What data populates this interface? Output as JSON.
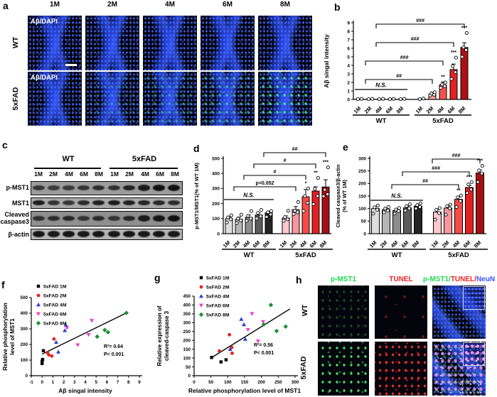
{
  "panels": {
    "a": "a",
    "b": "b",
    "c": "c",
    "d": "d",
    "e": "e",
    "f": "f",
    "g": "g",
    "h": "h"
  },
  "panel_a": {
    "col_headers": [
      "1M",
      "2M",
      "4M",
      "6M",
      "8M"
    ],
    "row_labels": [
      "WT",
      "5xFAD"
    ],
    "image_label": "Aβ/DAPI"
  },
  "panel_c": {
    "group_headers": [
      "WT",
      "5xFAD"
    ],
    "lane_labels": [
      "1M",
      "2M",
      "4M",
      "6M",
      "8M",
      "1M",
      "2M",
      "4M",
      "6M",
      "8M"
    ],
    "row_labels": [
      "p-MST1",
      "MST1",
      "Cleaved caspase3",
      "β-actin"
    ],
    "bands": {
      "p_mst1": [
        0.5,
        0.45,
        0.45,
        0.55,
        0.62,
        0.6,
        0.78,
        0.88,
        0.97,
        1.0
      ],
      "mst1": [
        0.85,
        0.6,
        0.55,
        0.7,
        0.82,
        0.88,
        0.8,
        0.78,
        0.72,
        0.68
      ],
      "cleaved_caspase3": [
        0.55,
        0.62,
        0.68,
        0.5,
        0.62,
        0.5,
        0.7,
        0.85,
        0.92,
        1.0
      ],
      "b_actin": [
        0.95,
        0.9,
        0.92,
        0.9,
        0.93,
        0.9,
        0.92,
        0.9,
        0.93,
        0.9
      ]
    }
  },
  "panel_h": {
    "col_headers": [
      "p-MST1",
      "TUNEL"
    ],
    "merge_parts": [
      "p-MST1/",
      "TUNEL/",
      "NeuN"
    ],
    "colors": {
      "green": "#1ddb4e",
      "red": "#ee2222",
      "blue": "#3a52ff"
    },
    "row_labels": [
      "WT",
      "5xFAD"
    ]
  },
  "chart_data": [
    {
      "id": "b",
      "type": "bar",
      "ylabel": "Aβ singal intensity",
      "ylim": [
        0,
        9
      ],
      "ytick_step": 1,
      "categories": [
        "1M",
        "2M",
        "4M",
        "6M",
        "8M",
        "1M",
        "2M",
        "4M",
        "6M",
        "8M"
      ],
      "group_labels": [
        "WT",
        "5xFAD"
      ],
      "values": [
        0.05,
        0.05,
        0.05,
        0.05,
        0.05,
        0.07,
        0.6,
        1.7,
        3.5,
        6.1
      ],
      "errors": [
        0.02,
        0.02,
        0.02,
        0.02,
        0.02,
        0.03,
        0.15,
        0.35,
        0.65,
        0.55
      ],
      "dots": [
        [
          0.03,
          0.07
        ],
        [
          0.03,
          0.07
        ],
        [
          0.03,
          0.07
        ],
        [
          0.03,
          0.07
        ],
        [
          0.03,
          0.07
        ],
        [
          0.04,
          0.1
        ],
        [
          0.45,
          0.55,
          0.7,
          0.85
        ],
        [
          1.35,
          1.55,
          1.75,
          2.0
        ],
        [
          2.4,
          3.2,
          3.9,
          4.9
        ],
        [
          5.0,
          5.8,
          6.1,
          7.8
        ]
      ],
      "bar_colors": [
        "#ffffff",
        "#ffffff",
        "#ffffff",
        "#ffffff",
        "#ffffff",
        "#ffd2d2",
        "#fa9f9f",
        "#f5524c",
        "#e02322",
        "#ae1115"
      ],
      "ns": {
        "from": 0,
        "to": 4,
        "label": "N.S."
      },
      "brackets": [
        {
          "from": 2,
          "to": 9,
          "label": "###",
          "row": 0
        },
        {
          "from": 2,
          "to": 8,
          "label": "###",
          "row": 1
        },
        {
          "from": 1,
          "to": 7,
          "label": "###",
          "row": 2
        },
        {
          "from": 1,
          "to": 6,
          "label": "##",
          "row": 3
        }
      ],
      "stars": [
        {
          "cat": 7,
          "text": "**"
        },
        {
          "cat": 8,
          "text": "***"
        },
        {
          "cat": 9,
          "text": "***"
        }
      ]
    },
    {
      "id": "d",
      "type": "bar",
      "ylabel": "p-MST1/MST1(% of WT 1M)",
      "ylim": [
        0,
        500
      ],
      "ytick_step": 100,
      "categories": [
        "1M",
        "2M",
        "4M",
        "6M",
        "8M",
        "1M",
        "2M",
        "4M",
        "6M",
        "8M"
      ],
      "group_labels": [
        "WT",
        "5xFAD"
      ],
      "values": [
        100,
        96,
        108,
        124,
        138,
        104,
        160,
        245,
        283,
        310
      ],
      "errors": [
        12,
        14,
        16,
        14,
        10,
        14,
        20,
        48,
        28,
        48
      ],
      "dots": [
        [
          75,
          95,
          108,
          122
        ],
        [
          70,
          88,
          100,
          126
        ],
        [
          85,
          100,
          118,
          150
        ],
        [
          100,
          115,
          138,
          158
        ],
        [
          112,
          128,
          142,
          150
        ],
        [
          85,
          95,
          110,
          152
        ],
        [
          130,
          142,
          152,
          210
        ],
        [
          150,
          205,
          250,
          300
        ],
        [
          196,
          250,
          298,
          370
        ],
        [
          248,
          262,
          292,
          440
        ]
      ],
      "bar_colors": [
        "#dedede",
        "#b6b6b6",
        "#8d8d8d",
        "#5c5c5c",
        "#242424",
        "#ffc7cc",
        "#fb969c",
        "#f84a46",
        "#e51e20",
        "#a31013"
      ],
      "ns": {
        "from": 0,
        "to": 4,
        "label": "N.S."
      },
      "brackets": [
        {
          "from": 4,
          "to": 9,
          "label": "##",
          "row": 0
        },
        {
          "from": 3,
          "to": 8,
          "label": "#",
          "row": 1
        },
        {
          "from": 2,
          "to": 7,
          "label": "#",
          "row": 2
        },
        {
          "from": 1,
          "to": 6,
          "label": "p=0.052",
          "row": 3
        }
      ],
      "stars": [
        {
          "cat": 7,
          "text": "*"
        },
        {
          "cat": 8,
          "text": "**"
        },
        {
          "cat": 9,
          "text": "***"
        }
      ]
    },
    {
      "id": "e",
      "type": "bar",
      "ylabel_lines": [
        "Cleaved caspase3/β-actin",
        "(% of WT 1M)"
      ],
      "ylim": [
        0,
        300
      ],
      "ytick_step": 50,
      "categories": [
        "1M",
        "2M",
        "4M",
        "6M",
        "8M",
        "1M",
        "2M",
        "4M",
        "6M",
        "8M"
      ],
      "group_labels": [
        "WT",
        "5xFAD"
      ],
      "values": [
        100,
        96,
        92,
        103,
        110,
        86,
        102,
        137,
        184,
        242
      ],
      "errors": [
        8,
        6,
        5,
        7,
        6,
        10,
        9,
        10,
        8,
        12
      ],
      "dots": [
        [
          80,
          95,
          105,
          112
        ],
        [
          85,
          92,
          100,
          106
        ],
        [
          80,
          90,
          96,
          102
        ],
        [
          92,
          100,
          110,
          117
        ],
        [
          100,
          106,
          114,
          121
        ],
        [
          56,
          82,
          95,
          102
        ],
        [
          76,
          100,
          110,
          116
        ],
        [
          106,
          130,
          145,
          152
        ],
        [
          162,
          176,
          196,
          205
        ],
        [
          206,
          240,
          252,
          270
        ]
      ],
      "bar_colors": [
        "#dedede",
        "#b6b6b6",
        "#8d8d8d",
        "#5c5c5c",
        "#242424",
        "#ffc7cc",
        "#fb969c",
        "#f84a46",
        "#e51e20",
        "#a31013"
      ],
      "ns": {
        "from": 0,
        "to": 4,
        "label": "N.S."
      },
      "brackets": [
        {
          "from": 5,
          "to": 9,
          "label": "###",
          "row": 0
        },
        {
          "from": 3,
          "to": 8,
          "label": "###",
          "row": 1
        },
        {
          "from": 2,
          "to": 7,
          "label": "##",
          "row": 2
        }
      ],
      "stars": [
        {
          "cat": 7,
          "text": "**"
        },
        {
          "cat": 8,
          "text": "***"
        },
        {
          "cat": 9,
          "text": "***"
        }
      ]
    },
    {
      "id": "f",
      "type": "scatter",
      "xlabel": "Aβ singal intensity",
      "ylabel_lines": [
        "Relative phosphorylation",
        "level of MST1"
      ],
      "xlim": [
        -1,
        9
      ],
      "xticks": [
        -1,
        0,
        1,
        2,
        3,
        4,
        5,
        6,
        7,
        8,
        9
      ],
      "ylim": [
        0,
        500
      ],
      "yticks": [
        0,
        100,
        200,
        300,
        400,
        500
      ],
      "series": [
        {
          "name": "5xFAD 1M",
          "marker": "square",
          "color": "#000000",
          "points": [
            [
              0,
              78
            ],
            [
              0,
              92
            ],
            [
              0.05,
              104
            ],
            [
              0.12,
              160
            ]
          ]
        },
        {
          "name": "5xFAD 2M",
          "marker": "circle",
          "color": "#e8231f",
          "points": [
            [
              0.5,
              148
            ],
            [
              0.62,
              133
            ],
            [
              0.9,
              126
            ],
            [
              1.1,
              235
            ]
          ]
        },
        {
          "name": "5xFAD 4M",
          "marker": "triangle",
          "color": "#2b3fd4",
          "points": [
            [
              1.3,
              215
            ],
            [
              1.5,
              153
            ],
            [
              2.1,
              290
            ],
            [
              2.2,
              325
            ]
          ]
        },
        {
          "name": "5xFAD 6M",
          "marker": "invtriangle",
          "color": "#f03ec8",
          "points": [
            [
              2.3,
              305
            ],
            [
              3.3,
              196
            ],
            [
              4.3,
              262
            ],
            [
              4.6,
              352
            ]
          ]
        },
        {
          "name": "5xFAD 8M",
          "marker": "diamond",
          "color": "#1b9133",
          "points": [
            [
              5.1,
              250
            ],
            [
              5.8,
              292
            ],
            [
              6.1,
              278
            ],
            [
              7.8,
              402
            ]
          ]
        }
      ],
      "fit_line": {
        "x1": 0,
        "y1": 138,
        "x2": 7.9,
        "y2": 405
      },
      "annotation": [
        "R²= 0.64",
        "P< 0.001"
      ]
    },
    {
      "id": "g",
      "type": "scatter",
      "xlabel": "Relative phosphorylation level of MST1",
      "ylabel_lines": [
        "Relative expression of",
        "cleaved-caspase 3"
      ],
      "xlim": [
        0,
        300
      ],
      "xticks": [
        0,
        50,
        100,
        150,
        200,
        250,
        300
      ],
      "ylim": [
        0,
        450
      ],
      "yticks": [
        0,
        50,
        100,
        150,
        200,
        250,
        300,
        350,
        400,
        450
      ],
      "series": [
        {
          "name": "5xFAD 1M",
          "marker": "square",
          "color": "#000000",
          "points": [
            [
              52,
              103
            ],
            [
              80,
              78
            ],
            [
              95,
              90
            ]
          ]
        },
        {
          "name": "5xFAD 2M",
          "marker": "circle",
          "color": "#e8231f",
          "points": [
            [
              75,
              140
            ],
            [
              105,
              232
            ],
            [
              112,
              160
            ],
            [
              113,
              127
            ]
          ]
        },
        {
          "name": "5xFAD 4M",
          "marker": "triangle",
          "color": "#2b3fd4",
          "points": [
            [
              107,
              150
            ],
            [
              140,
              320
            ],
            [
              148,
              290
            ],
            [
              152,
              207
            ]
          ]
        },
        {
          "name": "5xFAD 6M",
          "marker": "invtriangle",
          "color": "#f03ec8",
          "points": [
            [
              160,
              260
            ],
            [
              172,
              350
            ],
            [
              190,
              195
            ],
            [
              205,
              305
            ]
          ]
        },
        {
          "name": "5xFAD 8M",
          "marker": "diamond",
          "color": "#1b9133",
          "points": [
            [
              207,
              290
            ],
            [
              228,
              400
            ],
            [
              245,
              253
            ],
            [
              272,
              278
            ]
          ]
        }
      ],
      "fit_line": {
        "x1": 50,
        "y1": 100,
        "x2": 285,
        "y2": 378
      },
      "annotation": [
        "R²= 0.56",
        "P< 0.001"
      ]
    }
  ]
}
